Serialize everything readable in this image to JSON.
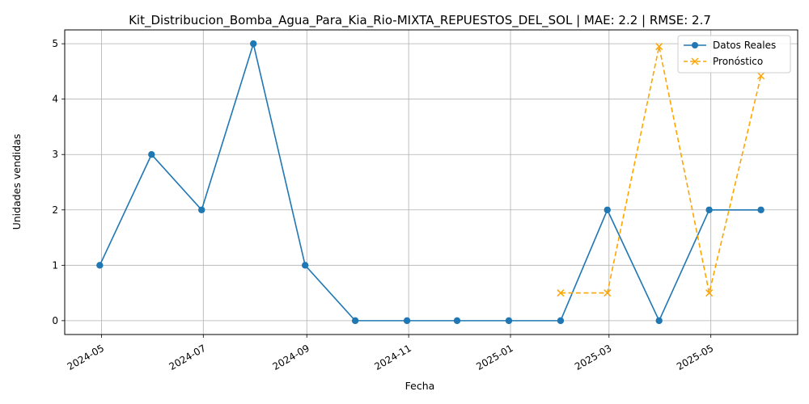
{
  "chart_data": {
    "type": "line",
    "title": "Kit_Distribucion_Bomba_Agua_Para_Kia_Rio-MIXTA_REPUESTOS_DEL_SOL | MAE: 2.2 | RMSE: 2.7",
    "xlabel": "Fecha",
    "ylabel": "Unidades vendidas",
    "grid": true,
    "legend_position": "top-right",
    "xlim": [
      "2024-04-09",
      "2025-06-22"
    ],
    "ylim": [
      -0.25,
      5.25
    ],
    "x_ticks": [
      "2024-05",
      "2024-07",
      "2024-09",
      "2024-11",
      "2025-01",
      "2025-03",
      "2025-05"
    ],
    "y_ticks": [
      0,
      1,
      2,
      3,
      4,
      5
    ],
    "series": [
      {
        "name": "Datos Reales",
        "color": "#1f77b4",
        "style": "solid",
        "marker": "circle",
        "x": [
          "2024-04-30",
          "2024-05-31",
          "2024-06-30",
          "2024-07-31",
          "2024-08-31",
          "2024-09-30",
          "2024-10-31",
          "2024-11-30",
          "2024-12-31",
          "2025-01-31",
          "2025-02-28",
          "2025-03-31",
          "2025-04-30",
          "2025-05-31"
        ],
        "values": [
          1,
          3,
          2,
          5,
          1,
          0,
          0,
          0,
          0,
          0,
          2,
          0,
          2,
          2
        ]
      },
      {
        "name": "Pronóstico",
        "color": "#ffa500",
        "style": "dashed",
        "marker": "x",
        "x": [
          "2025-01-31",
          "2025-02-28",
          "2025-03-31",
          "2025-04-30",
          "2025-05-31"
        ],
        "values": [
          0.5,
          0.5,
          4.95,
          0.5,
          4.42
        ]
      }
    ]
  }
}
